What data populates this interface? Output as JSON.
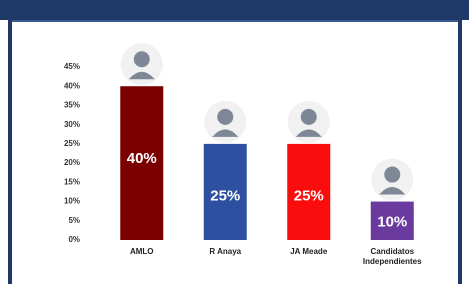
{
  "chart_data": {
    "type": "bar",
    "categories": [
      "AMLO",
      "R Anaya",
      "JA Meade",
      "Candidatos Independientes"
    ],
    "values": [
      40,
      25,
      25,
      10
    ],
    "value_labels": [
      "40%",
      "25%",
      "25%",
      "10%"
    ],
    "colors": [
      "#7b0000",
      "#2d50a0",
      "#fc0d0d",
      "#6a3a9e"
    ],
    "ylim": [
      0,
      45
    ],
    "yticks": [
      {
        "value": 0,
        "label": "0%"
      },
      {
        "value": 5,
        "label": "5%"
      },
      {
        "value": 10,
        "label": "10%"
      },
      {
        "value": 15,
        "label": "15%"
      },
      {
        "value": 20,
        "label": "20%"
      },
      {
        "value": 25,
        "label": "25%"
      },
      {
        "value": 30,
        "label": "30%"
      },
      {
        "value": 35,
        "label": "35%"
      },
      {
        "value": 40,
        "label": "40%"
      },
      {
        "value": 45,
        "label": "45%"
      }
    ],
    "grid": false
  }
}
